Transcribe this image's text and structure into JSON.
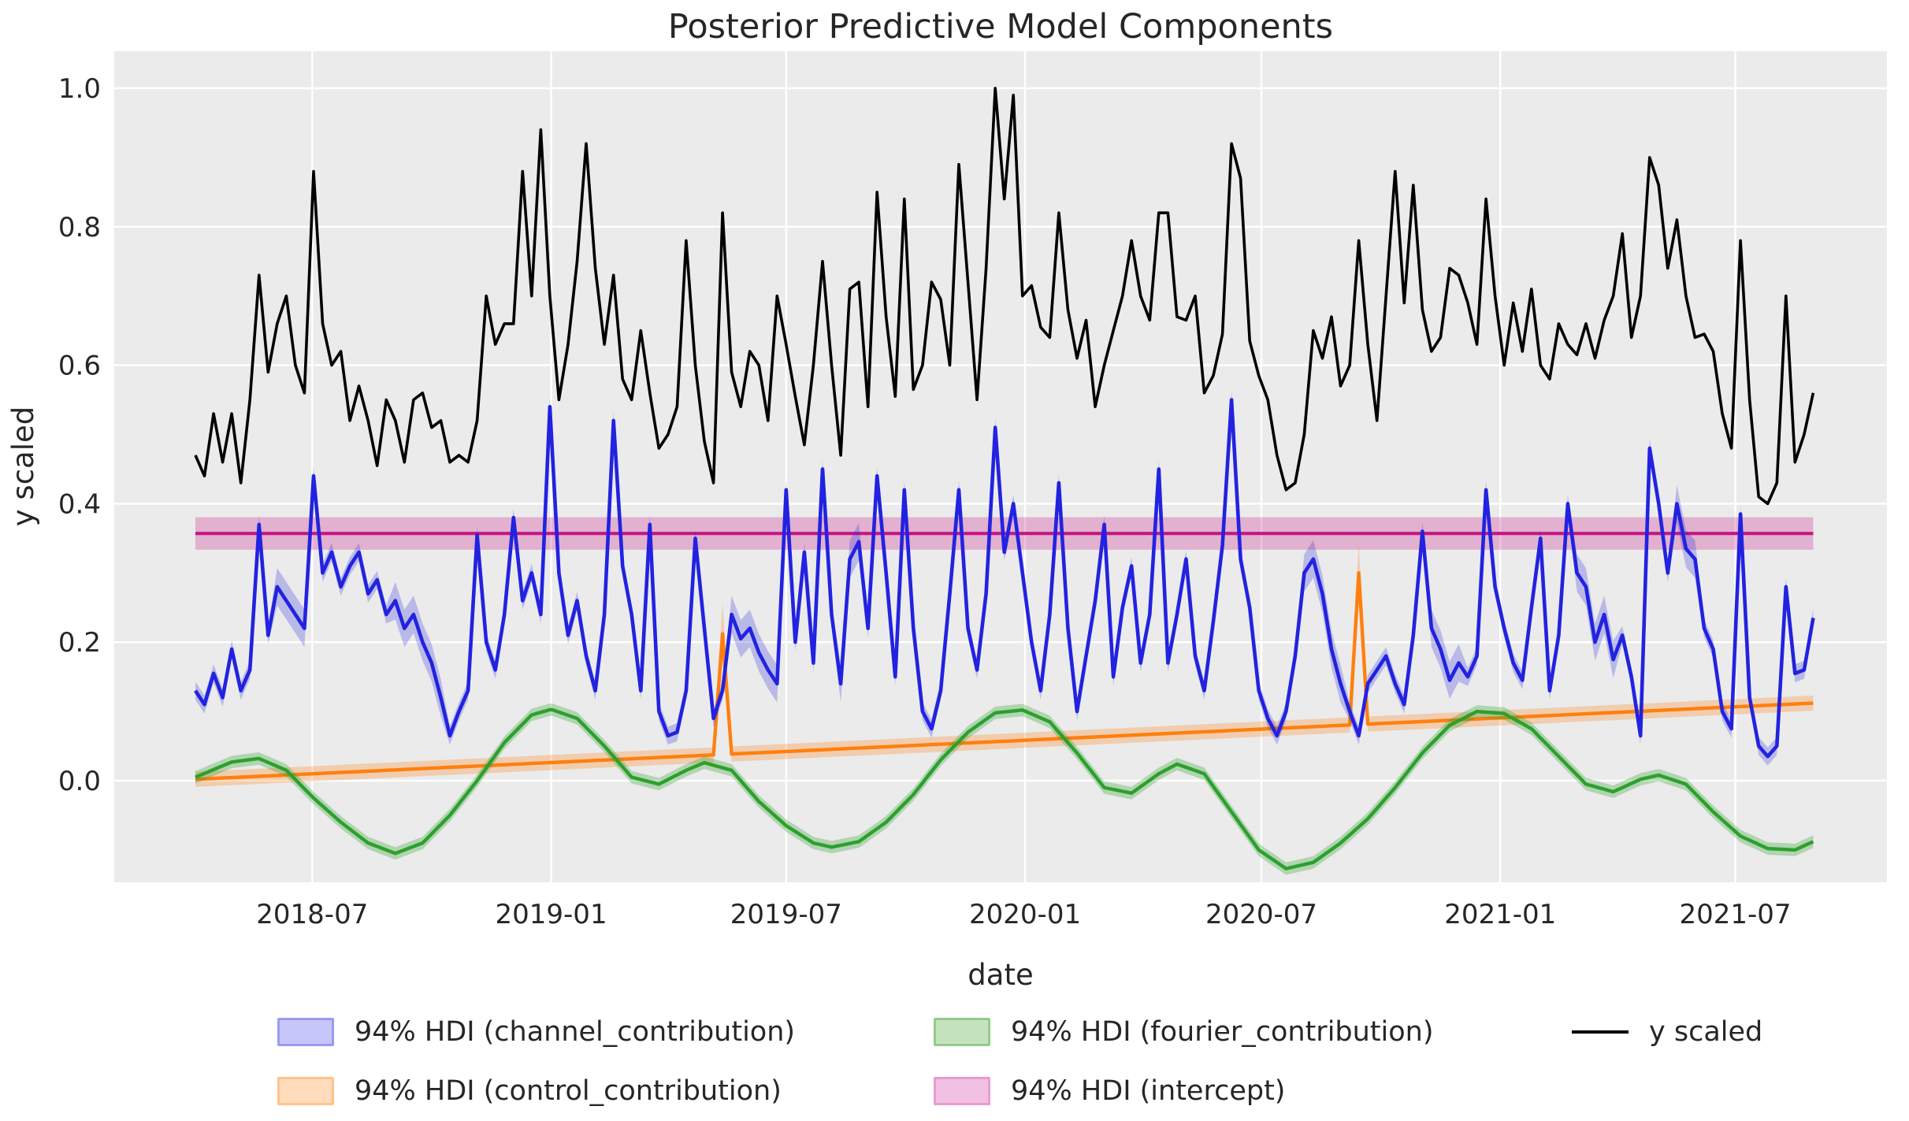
{
  "title": "Posterior Predictive Model Components",
  "xlabel": "date",
  "ylabel": "y scaled",
  "legend": {
    "items": [
      {
        "label": "94% HDI (channel_contribution)",
        "type": "patch",
        "fill": "#c6c6fa",
        "edge": "#9a9af2",
        "col": 0,
        "row": 0
      },
      {
        "label": "94% HDI (control_contribution)",
        "type": "patch",
        "fill": "#ffdcbb",
        "edge": "#ffc28a",
        "col": 0,
        "row": 1
      },
      {
        "label": "94% HDI (fourier_contribution)",
        "type": "patch",
        "fill": "#c5e3bf",
        "edge": "#93cb8b",
        "col": 1,
        "row": 0
      },
      {
        "label": "94% HDI (intercept)",
        "type": "patch",
        "fill": "#f2c0e3",
        "edge": "#e79cd1",
        "col": 1,
        "row": 1
      },
      {
        "label": "y scaled",
        "type": "line",
        "color": "#000000",
        "col": 2,
        "row": 0
      }
    ]
  },
  "chart_data": {
    "type": "line",
    "title": "Posterior Predictive Model Components",
    "xlabel": "date",
    "ylabel": "y scaled",
    "grid": true,
    "background": "#ebebeb",
    "x_start_date": "2018-04-02",
    "x_freq_days": 7,
    "n_points": 179,
    "x_tick_dates": [
      "2018-07-01",
      "2019-01-01",
      "2019-07-01",
      "2020-01-01",
      "2020-07-01",
      "2021-01-01",
      "2021-07-01"
    ],
    "x_tick_labels": [
      "2018-07",
      "2019-01",
      "2019-07",
      "2020-01",
      "2020-07",
      "2021-01",
      "2021-07"
    ],
    "y_ticks": [
      0.0,
      0.2,
      0.4,
      0.6,
      0.8,
      1.0
    ],
    "y_tick_labels": [
      "0.0",
      "0.2",
      "0.4",
      "0.6",
      "0.8",
      "1.0"
    ],
    "ylim": [
      -0.147,
      1.054
    ],
    "series": [
      {
        "name": "y scaled",
        "kind": "line",
        "color": "#000000",
        "width": 3.6,
        "values": [
          0.47,
          0.44,
          0.53,
          0.46,
          0.53,
          0.43,
          0.55,
          0.73,
          0.59,
          0.66,
          0.7,
          0.6,
          0.56,
          0.88,
          0.66,
          0.6,
          0.62,
          0.52,
          0.57,
          0.52,
          0.455,
          0.55,
          0.52,
          0.46,
          0.55,
          0.56,
          0.51,
          0.52,
          0.46,
          0.47,
          0.46,
          0.52,
          0.7,
          0.63,
          0.66,
          0.66,
          0.88,
          0.7,
          0.94,
          0.7,
          0.55,
          0.63,
          0.75,
          0.92,
          0.74,
          0.63,
          0.73,
          0.58,
          0.55,
          0.65,
          0.56,
          0.48,
          0.5,
          0.54,
          0.78,
          0.6,
          0.49,
          0.43,
          0.82,
          0.59,
          0.54,
          0.62,
          0.6,
          0.52,
          0.7,
          0.63,
          0.555,
          0.485,
          0.6,
          0.75,
          0.6,
          0.47,
          0.71,
          0.72,
          0.54,
          0.85,
          0.67,
          0.555,
          0.84,
          0.565,
          0.6,
          0.72,
          0.695,
          0.6,
          0.89,
          0.72,
          0.55,
          0.74,
          1.0,
          0.84,
          0.99,
          0.7,
          0.715,
          0.655,
          0.64,
          0.82,
          0.68,
          0.61,
          0.665,
          0.54,
          0.6,
          0.65,
          0.7,
          0.78,
          0.7,
          0.665,
          0.82,
          0.82,
          0.67,
          0.665,
          0.7,
          0.56,
          0.585,
          0.645,
          0.92,
          0.87,
          0.635,
          0.585,
          0.55,
          0.47,
          0.42,
          0.43,
          0.5,
          0.65,
          0.61,
          0.67,
          0.57,
          0.6,
          0.78,
          0.63,
          0.52,
          0.7,
          0.88,
          0.69,
          0.86,
          0.68,
          0.62,
          0.64,
          0.74,
          0.73,
          0.69,
          0.63,
          0.84,
          0.7,
          0.6,
          0.69,
          0.62,
          0.71,
          0.6,
          0.58,
          0.66,
          0.63,
          0.615,
          0.66,
          0.61,
          0.665,
          0.7,
          0.79,
          0.64,
          0.7,
          0.9,
          0.86,
          0.74,
          0.81,
          0.7,
          0.64,
          0.645,
          0.62,
          0.53,
          0.48,
          0.78,
          0.55,
          0.41,
          0.4,
          0.43,
          0.7,
          0.46,
          0.5,
          0.56
        ]
      },
      {
        "name": "channel_contribution",
        "kind": "line_with_hdi",
        "color": "#2222e0",
        "band_color": "rgba(34,34,224,0.25)",
        "width": 4.6,
        "hdi_half_width": 0.013,
        "hdi_half_width_wide": 0.027,
        "hdi_wide_date_ranges": [
          [
            "2018-06-04",
            "2018-06-25"
          ],
          [
            "2018-09-03",
            "2018-10-08"
          ],
          [
            "2019-05-20",
            "2019-06-24"
          ],
          [
            "2019-08-12",
            "2019-08-26"
          ],
          [
            "2020-08-03",
            "2020-08-31"
          ],
          [
            "2020-11-09",
            "2020-11-30"
          ],
          [
            "2021-03-01",
            "2021-03-29"
          ],
          [
            "2021-05-17",
            "2021-05-31"
          ]
        ],
        "values": [
          0.13,
          0.11,
          0.155,
          0.12,
          0.19,
          0.13,
          0.16,
          0.37,
          0.21,
          0.28,
          0.26,
          0.24,
          0.22,
          0.44,
          0.3,
          0.33,
          0.28,
          0.31,
          0.33,
          0.27,
          0.29,
          0.24,
          0.26,
          0.22,
          0.24,
          0.2,
          0.17,
          0.12,
          0.065,
          0.1,
          0.13,
          0.355,
          0.2,
          0.16,
          0.24,
          0.38,
          0.26,
          0.3,
          0.24,
          0.54,
          0.3,
          0.21,
          0.26,
          0.18,
          0.13,
          0.24,
          0.52,
          0.31,
          0.24,
          0.13,
          0.37,
          0.1,
          0.065,
          0.07,
          0.13,
          0.35,
          0.22,
          0.09,
          0.13,
          0.24,
          0.205,
          0.22,
          0.185,
          0.16,
          0.14,
          0.42,
          0.2,
          0.33,
          0.17,
          0.45,
          0.24,
          0.14,
          0.32,
          0.345,
          0.22,
          0.44,
          0.3,
          0.15,
          0.42,
          0.22,
          0.1,
          0.075,
          0.13,
          0.27,
          0.42,
          0.22,
          0.16,
          0.27,
          0.51,
          0.33,
          0.4,
          0.3,
          0.2,
          0.13,
          0.24,
          0.43,
          0.22,
          0.1,
          0.18,
          0.26,
          0.37,
          0.15,
          0.25,
          0.31,
          0.17,
          0.24,
          0.45,
          0.17,
          0.24,
          0.32,
          0.18,
          0.13,
          0.23,
          0.34,
          0.55,
          0.32,
          0.25,
          0.13,
          0.09,
          0.065,
          0.1,
          0.18,
          0.3,
          0.32,
          0.27,
          0.19,
          0.14,
          0.1,
          0.065,
          0.14,
          0.16,
          0.18,
          0.14,
          0.11,
          0.21,
          0.36,
          0.22,
          0.19,
          0.145,
          0.17,
          0.15,
          0.18,
          0.42,
          0.28,
          0.22,
          0.17,
          0.145,
          0.25,
          0.35,
          0.13,
          0.21,
          0.4,
          0.3,
          0.28,
          0.2,
          0.24,
          0.175,
          0.21,
          0.15,
          0.065,
          0.48,
          0.4,
          0.3,
          0.4,
          0.335,
          0.32,
          0.22,
          0.19,
          0.1,
          0.075,
          0.385,
          0.12,
          0.05,
          0.035,
          0.05,
          0.28,
          0.155,
          0.16,
          0.235
        ]
      },
      {
        "name": "control_contribution",
        "kind": "trend_with_spikes",
        "color": "#ff7f0e",
        "band_color": "rgba(255,127,14,0.27)",
        "width": 4.4,
        "baseline_start": 0.002,
        "baseline_end": 0.112,
        "hdi_half_width": 0.011,
        "hdi_half_width_spike": 0.045,
        "spikes": [
          {
            "date": "2019-05-13",
            "value": 0.212
          },
          {
            "date": "2020-09-14",
            "value": 0.3
          }
        ]
      },
      {
        "name": "fourier_contribution",
        "kind": "anchored_curve_with_hdi",
        "color": "#2ca02c",
        "band_color": "rgba(44,160,44,0.30)",
        "width": 4.4,
        "hdi_half_width": 0.009,
        "anchors": [
          [
            "2018-04-02",
            0.005
          ],
          [
            "2018-04-30",
            0.027
          ],
          [
            "2018-05-21",
            0.032
          ],
          [
            "2018-06-11",
            0.015
          ],
          [
            "2018-07-02",
            -0.025
          ],
          [
            "2018-07-23",
            -0.06
          ],
          [
            "2018-08-13",
            -0.09
          ],
          [
            "2018-09-03",
            -0.105
          ],
          [
            "2018-09-24",
            -0.09
          ],
          [
            "2018-10-15",
            -0.05
          ],
          [
            "2018-11-05",
            0.0
          ],
          [
            "2018-11-26",
            0.055
          ],
          [
            "2018-12-17",
            0.095
          ],
          [
            "2019-01-01",
            0.103
          ],
          [
            "2019-01-21",
            0.09
          ],
          [
            "2019-02-11",
            0.05
          ],
          [
            "2019-03-04",
            0.005
          ],
          [
            "2019-03-25",
            -0.005
          ],
          [
            "2019-04-15",
            0.015
          ],
          [
            "2019-04-29",
            0.026
          ],
          [
            "2019-05-20",
            0.015
          ],
          [
            "2019-06-10",
            -0.03
          ],
          [
            "2019-07-01",
            -0.065
          ],
          [
            "2019-07-22",
            -0.09
          ],
          [
            "2019-08-05",
            -0.096
          ],
          [
            "2019-08-26",
            -0.088
          ],
          [
            "2019-09-16",
            -0.06
          ],
          [
            "2019-10-07",
            -0.02
          ],
          [
            "2019-10-28",
            0.03
          ],
          [
            "2019-11-18",
            0.07
          ],
          [
            "2019-12-09",
            0.098
          ],
          [
            "2019-12-30",
            0.102
          ],
          [
            "2020-01-20",
            0.085
          ],
          [
            "2020-02-10",
            0.04
          ],
          [
            "2020-03-02",
            -0.01
          ],
          [
            "2020-03-23",
            -0.018
          ],
          [
            "2020-04-13",
            0.01
          ],
          [
            "2020-04-27",
            0.024
          ],
          [
            "2020-05-18",
            0.01
          ],
          [
            "2020-06-08",
            -0.045
          ],
          [
            "2020-06-29",
            -0.1
          ],
          [
            "2020-07-20",
            -0.127
          ],
          [
            "2020-08-10",
            -0.118
          ],
          [
            "2020-08-31",
            -0.09
          ],
          [
            "2020-09-21",
            -0.055
          ],
          [
            "2020-10-12",
            -0.01
          ],
          [
            "2020-11-02",
            0.04
          ],
          [
            "2020-11-23",
            0.08
          ],
          [
            "2020-12-14",
            0.1
          ],
          [
            "2021-01-04",
            0.097
          ],
          [
            "2021-01-25",
            0.075
          ],
          [
            "2021-02-15",
            0.035
          ],
          [
            "2021-03-08",
            -0.005
          ],
          [
            "2021-03-29",
            -0.016
          ],
          [
            "2021-04-19",
            0.002
          ],
          [
            "2021-05-03",
            0.008
          ],
          [
            "2021-05-24",
            -0.005
          ],
          [
            "2021-06-14",
            -0.045
          ],
          [
            "2021-07-05",
            -0.08
          ],
          [
            "2021-07-26",
            -0.098
          ],
          [
            "2021-08-16",
            -0.1
          ],
          [
            "2021-08-30",
            -0.088
          ]
        ]
      },
      {
        "name": "intercept",
        "kind": "constant_with_hdi",
        "color": "#c71585",
        "band_color": "rgba(199,21,133,0.27)",
        "width": 4.2,
        "mean": 0.357,
        "hdi_low": 0.3335,
        "hdi_high": 0.3805
      }
    ]
  }
}
